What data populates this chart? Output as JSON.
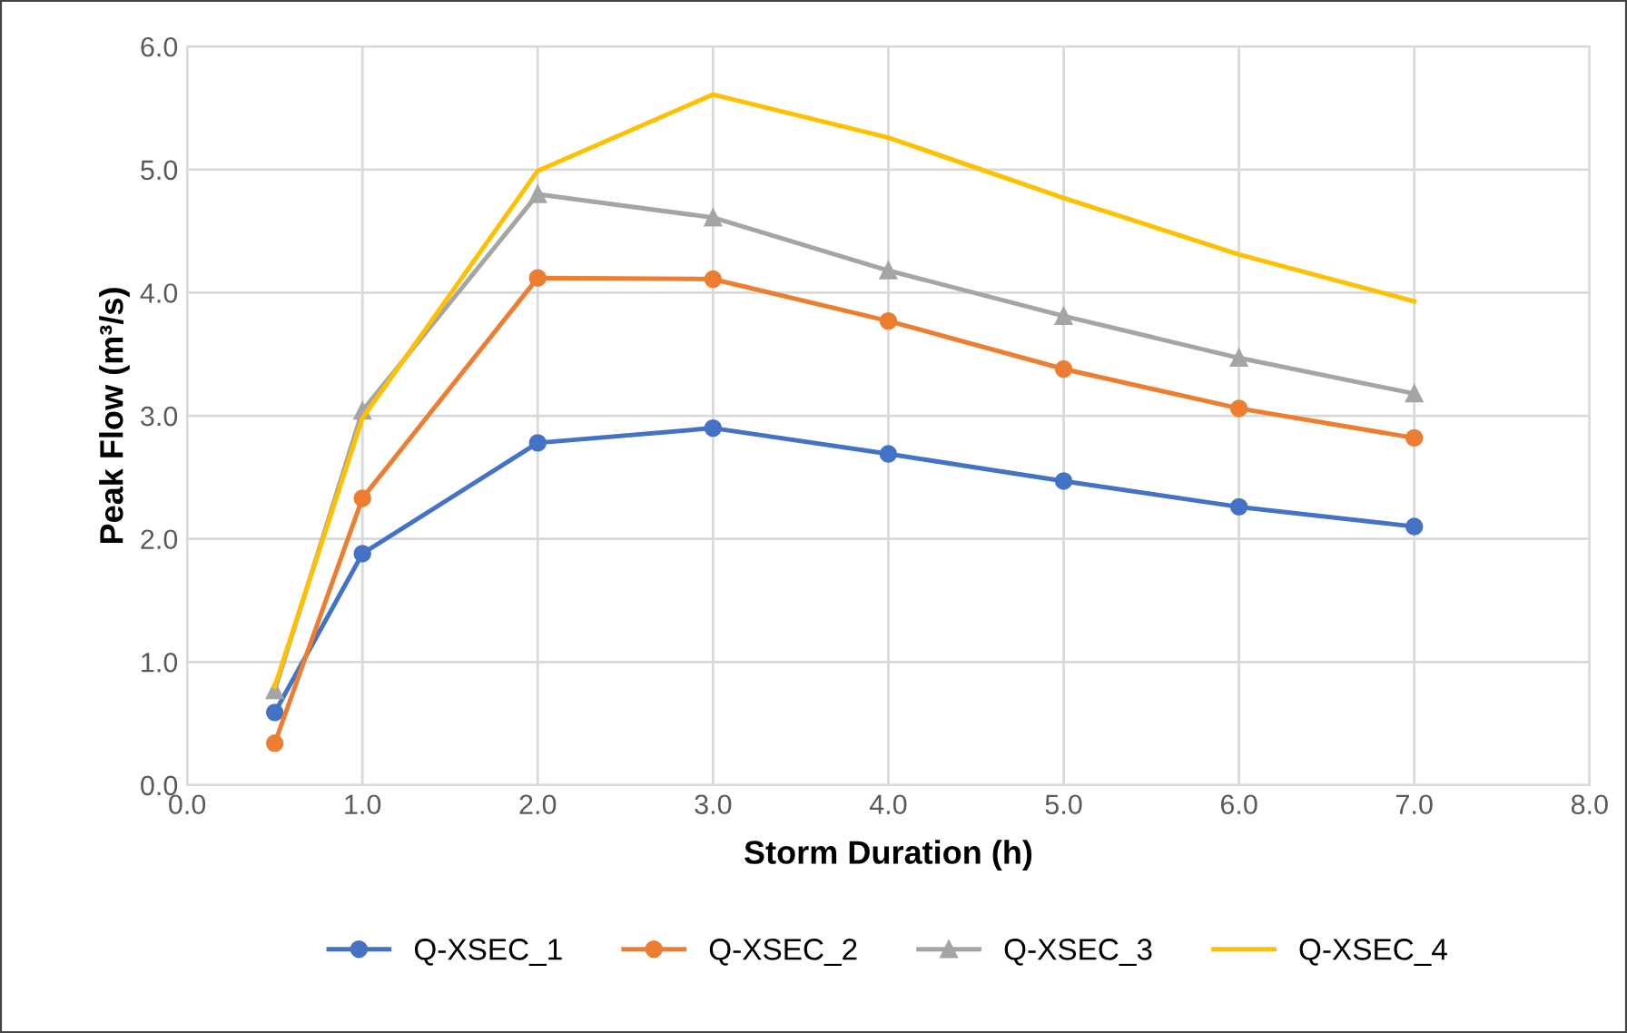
{
  "chart_data": {
    "type": "line",
    "xlabel": "Storm Duration (h)",
    "ylabel": "Peak Flow (m³/s)",
    "x": [
      0.5,
      1,
      2,
      3,
      4,
      5,
      6,
      7
    ],
    "series": [
      {
        "name": "Q-XSEC_1",
        "color": "#4472c4",
        "marker": "circle",
        "values": [
          0.59,
          1.88,
          2.78,
          2.9,
          2.69,
          2.47,
          2.26,
          2.1
        ]
      },
      {
        "name": "Q-XSEC_2",
        "color": "#ed7d31",
        "marker": "circle",
        "values": [
          0.34,
          2.33,
          4.12,
          4.11,
          3.77,
          3.38,
          3.06,
          2.82
        ]
      },
      {
        "name": "Q-XSEC_3",
        "color": "#a5a5a5",
        "marker": "triangle",
        "values": [
          0.77,
          3.04,
          4.8,
          4.61,
          4.18,
          3.81,
          3.47,
          3.18
        ]
      },
      {
        "name": "Q-XSEC_4",
        "color": "#ffc000",
        "marker": "none",
        "values": [
          0.8,
          2.98,
          4.99,
          5.61,
          5.26,
          4.77,
          4.31,
          3.93
        ]
      }
    ],
    "xlim": [
      0,
      8
    ],
    "ylim": [
      0,
      6
    ],
    "xticks": [
      {
        "value": 0,
        "label": "0.0"
      },
      {
        "value": 1,
        "label": "1.0"
      },
      {
        "value": 2,
        "label": "2.0"
      },
      {
        "value": 3,
        "label": "3.0"
      },
      {
        "value": 4,
        "label": "4.0"
      },
      {
        "value": 5,
        "label": "5.0"
      },
      {
        "value": 6,
        "label": "6.0"
      },
      {
        "value": 7,
        "label": "7.0"
      },
      {
        "value": 8,
        "label": "8.0"
      }
    ],
    "yticks": [
      {
        "value": 0,
        "label": "0.0"
      },
      {
        "value": 1,
        "label": "1.0"
      },
      {
        "value": 2,
        "label": "2.0"
      },
      {
        "value": 3,
        "label": "3.0"
      },
      {
        "value": 4,
        "label": "4.0"
      },
      {
        "value": 5,
        "label": "5.0"
      },
      {
        "value": 6,
        "label": "6.0"
      }
    ],
    "grid": true,
    "legend": "bottom",
    "line_style": "solid"
  }
}
